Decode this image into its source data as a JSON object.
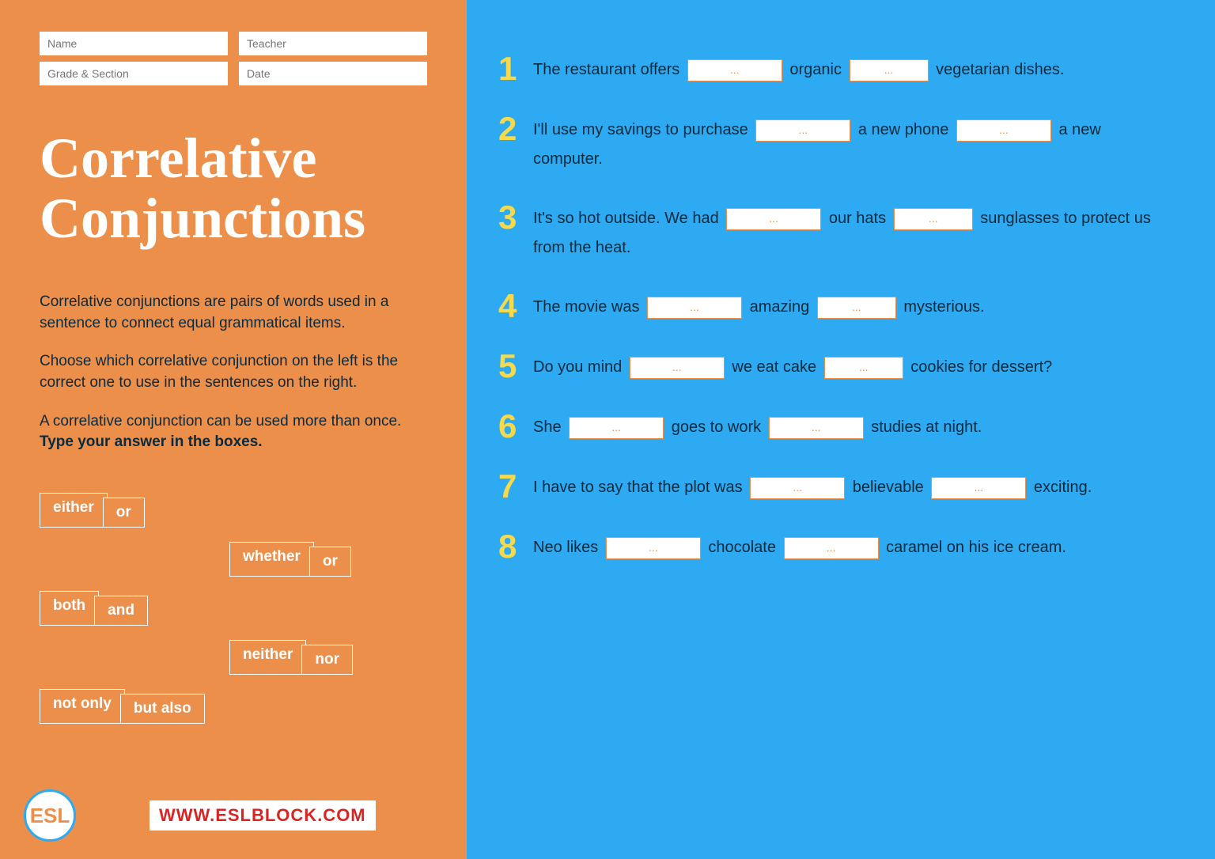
{
  "header": {
    "fields": [
      "Name",
      "Teacher",
      "Grade & Section",
      "Date"
    ]
  },
  "title_line1": "Correlative",
  "title_line2": "Conjunctions",
  "description": {
    "p1": "Correlative conjunctions are pairs of words used in a sentence to connect equal grammatical items.",
    "p2": "Choose which correlative conjunction on the left is the correct one to use in the sentences on the right.",
    "p3a": "A correlative conjunction can be used more than once. ",
    "p3b": "Type your answer in the boxes."
  },
  "wordbank": [
    {
      "a": "either",
      "b": "or",
      "indent": false
    },
    {
      "a": "whether",
      "b": "or",
      "indent": true
    },
    {
      "a": "both",
      "b": "and",
      "indent": false
    },
    {
      "a": "neither",
      "b": "nor",
      "indent": true
    },
    {
      "a": "not only",
      "b": "but also",
      "indent": false
    }
  ],
  "footer": {
    "badge": "ESL",
    "url": "WWW.ESLBLOCK.COM"
  },
  "blank_placeholder": "...",
  "questions": [
    {
      "n": "1",
      "parts": [
        "The restaurant offers ",
        "BLANK",
        " organic ",
        "BLANK_SM",
        " vegetarian dishes."
      ]
    },
    {
      "n": "2",
      "parts": [
        "I'll use my savings to purchase ",
        "BLANK",
        " a new phone ",
        "BLANK",
        " a new computer."
      ]
    },
    {
      "n": "3",
      "parts": [
        "It's so hot outside. We had ",
        "BLANK",
        " our hats ",
        "BLANK_SM",
        " sunglasses to protect us from the heat."
      ]
    },
    {
      "n": "4",
      "parts": [
        "The movie was ",
        "BLANK",
        " amazing ",
        "BLANK_SM",
        " mysterious."
      ]
    },
    {
      "n": "5",
      "parts": [
        "Do you mind ",
        "BLANK",
        " we eat cake ",
        "BLANK_SM",
        " cookies for dessert?"
      ]
    },
    {
      "n": "6",
      "parts": [
        "She ",
        "BLANK",
        " goes to work ",
        "BLANK",
        " studies at night."
      ]
    },
    {
      "n": "7",
      "parts": [
        "I have to say that the plot was ",
        "BLANK",
        " believable ",
        "BLANK",
        " exciting."
      ]
    },
    {
      "n": "8",
      "parts": [
        "Neo likes ",
        "BLANK",
        " chocolate ",
        "BLANK",
        " caramel on his ice cream."
      ]
    }
  ],
  "colors": {
    "left_bg": "#ec8f4a",
    "right_bg": "#2daaf2",
    "title": "#ffffff",
    "body_text": "#0b2a3d",
    "q_number": "#f7d94c",
    "blank_border": "#ec8f4a",
    "url_text": "#d92424"
  }
}
